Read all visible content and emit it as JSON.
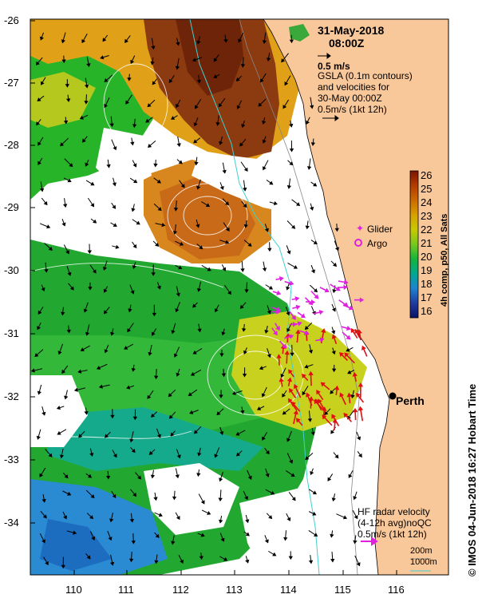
{
  "title": {
    "date": "31-May-2018",
    "time": "08:00Z",
    "scale_label": "0.5 m/s"
  },
  "gsla": {
    "line1": "GSLA (0.1m contours)",
    "line2": "and velocities for",
    "line3": "30-May 00:00Z",
    "line4": "0.5m/s (1kt 12h)"
  },
  "legend": {
    "glider": "Glider",
    "argo": "Argo",
    "glider_color": "#e020e0",
    "argo_color": "#e020e0"
  },
  "colorbar": {
    "title": "4h comp, p50, All Sats",
    "ticks": [
      "26",
      "25",
      "24",
      "23",
      "22",
      "21",
      "20",
      "19",
      "18",
      "17",
      "16"
    ],
    "colors": [
      "#8b1a00",
      "#b33c00",
      "#c86400",
      "#d89a00",
      "#c8c800",
      "#7cc81e",
      "#14b43c",
      "#00a08c",
      "#1e78c8",
      "#1e3ca0",
      "#0a1464"
    ]
  },
  "city": {
    "name": "Perth"
  },
  "hf_radar": {
    "line1": "HF radar velocity",
    "line2": "(4-12h avg)noQC",
    "line3": "0.5m/s (1kt 12h)",
    "color": "#e020e0"
  },
  "depth": {
    "d200": "200m",
    "d1000": "1000m",
    "d200_color": "#888888",
    "d1000_color": "#40d0d0"
  },
  "credit": "© IMOS 04-Jun-2018 16:27 Hobart Time",
  "axes": {
    "x_ticks": [
      "110",
      "111",
      "112",
      "113",
      "114",
      "115",
      "116"
    ],
    "y_ticks": [
      "-26",
      "-27",
      "-28",
      "-29",
      "-30",
      "-31",
      "-32",
      "-33",
      "-34"
    ]
  },
  "colors": {
    "land": "#f9c89a",
    "green": "#28b428",
    "orange": "#d88c1e",
    "brown": "#8c3a10",
    "yellow": "#c8d21e"
  }
}
